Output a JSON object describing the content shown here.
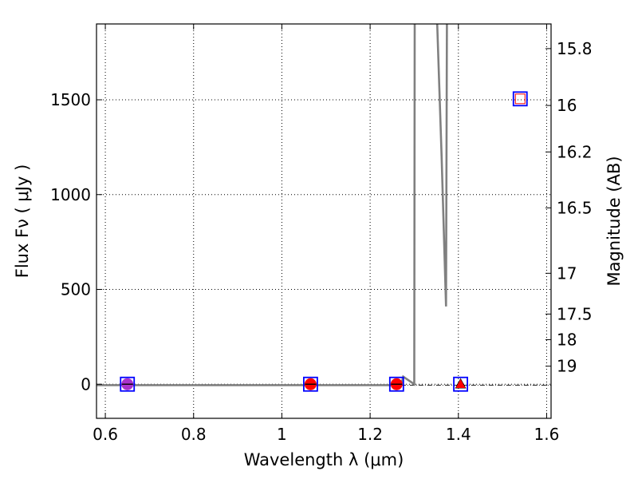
{
  "chart_data": {
    "type": "scatter",
    "xlabel": "Wavelength  λ (μm)",
    "ylabel": "Flux  Fν  ( μJy )",
    "y2label": "Magnitude (AB)",
    "xlim": [
      0.58,
      1.61
    ],
    "ylim": [
      -180,
      1900
    ],
    "x_ticks": [
      {
        "value": 0.6,
        "label": "0.6"
      },
      {
        "value": 0.8,
        "label": "0.8"
      },
      {
        "value": 1.0,
        "label": "1"
      },
      {
        "value": 1.2,
        "label": "1.2"
      },
      {
        "value": 1.4,
        "label": "1.4"
      },
      {
        "value": 1.6,
        "label": "1.6"
      }
    ],
    "y_ticks": [
      {
        "value": 0,
        "label": "0"
      },
      {
        "value": 500,
        "label": "500"
      },
      {
        "value": 1000,
        "label": "1000"
      },
      {
        "value": 1500,
        "label": "1500"
      }
    ],
    "mag_ticks": [
      {
        "label": "15.8",
        "flux": 1770
      },
      {
        "label": "16",
        "flux": 1470
      },
      {
        "label": "16.2",
        "flux": 1225
      },
      {
        "label": "16.5",
        "flux": 930
      },
      {
        "label": "17",
        "flux": 585
      },
      {
        "label": "17.5",
        "flux": 370
      },
      {
        "label": "18",
        "flux": 235
      },
      {
        "label": "19",
        "flux": 95
      }
    ],
    "model_curve": [
      [
        0.58,
        -5
      ],
      [
        1.27,
        -5
      ],
      [
        1.275,
        40
      ],
      [
        1.3,
        0
      ],
      [
        1.301,
        1900
      ],
      [
        null,
        null
      ],
      [
        1.352,
        1900
      ],
      [
        1.362,
        1200
      ],
      [
        1.372,
        410
      ],
      [
        1.374,
        1900
      ]
    ],
    "zero_line": [
      [
        1.27,
        -5
      ],
      [
        1.61,
        -5
      ]
    ],
    "points": [
      {
        "x": 0.65,
        "y": 0,
        "kind": "circle",
        "color": "#aa33cc"
      },
      {
        "x": 1.065,
        "y": 0,
        "kind": "circle",
        "color": "#ff0000"
      },
      {
        "x": 1.26,
        "y": 0,
        "kind": "circle",
        "color": "#ff0000"
      },
      {
        "x": 1.405,
        "y": 0,
        "kind": "triangle",
        "color": "#ff0000"
      }
    ],
    "model_squares": [
      {
        "x": 0.65,
        "y": 0
      },
      {
        "x": 1.065,
        "y": 0
      },
      {
        "x": 1.26,
        "y": 0
      },
      {
        "x": 1.405,
        "y": 0
      },
      {
        "x": 1.54,
        "y": 1505
      }
    ],
    "upper_limit_square": {
      "x": 1.54,
      "y": 1505
    },
    "colors": {
      "model": "#808080",
      "square": "#0000ff",
      "open_square": "#ff0000"
    }
  }
}
